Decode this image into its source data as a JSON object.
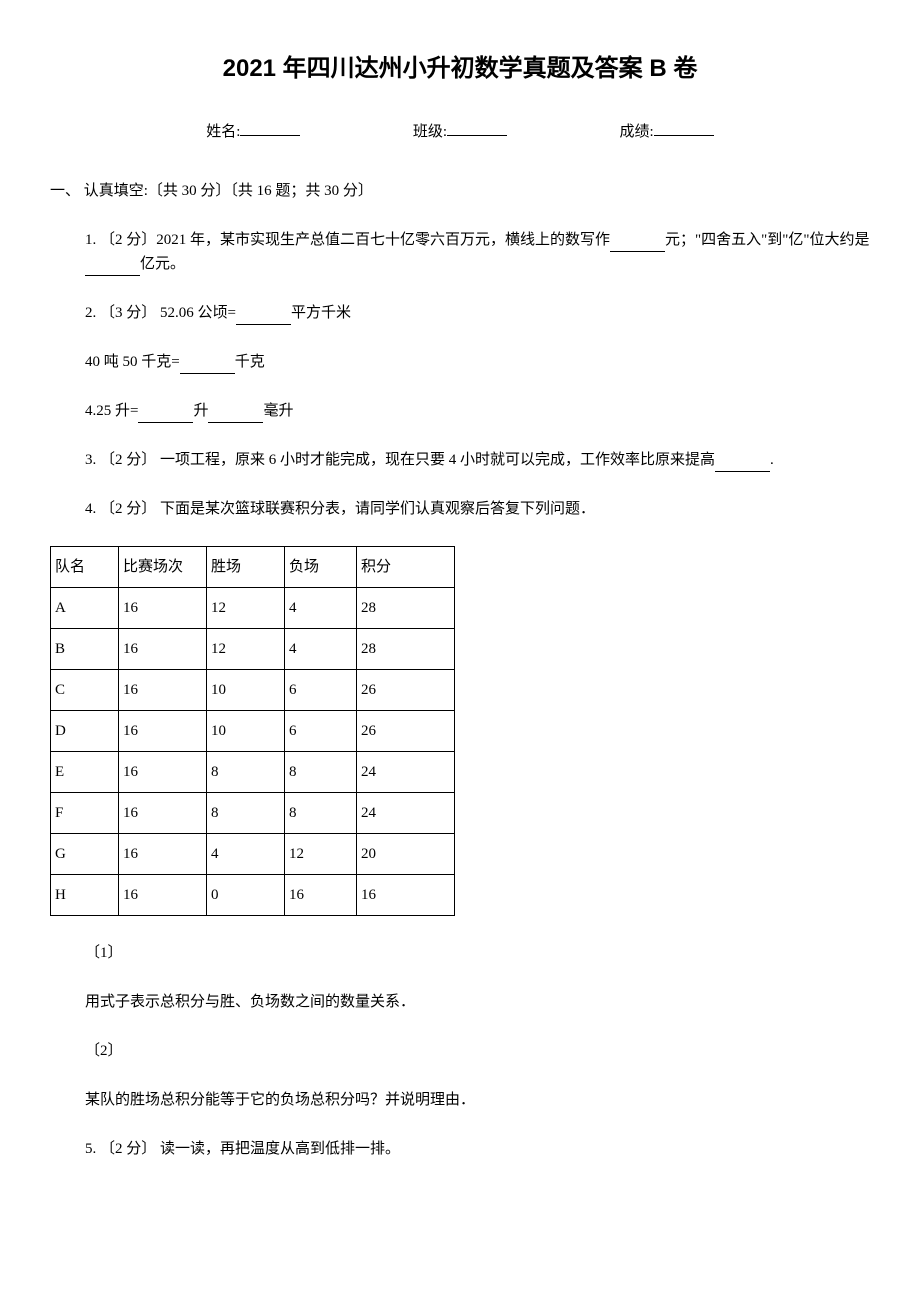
{
  "title": "2021 年四川达州小升初数学真题及答案 B 卷",
  "info": {
    "name_label": "姓名:",
    "class_label": "班级:",
    "score_label": "成绩:"
  },
  "section1": {
    "header": "一、 认真填空:〔共 30 分〕〔共 16 题；共 30 分〕"
  },
  "q1": {
    "text_a": "1. 〔2 分〕2021 年，某市实现生产总值二百七十亿零六百万元，横线上的数写作",
    "text_b": "元；\"四舍五入\"到\"亿\"位大约是",
    "text_c": "亿元。"
  },
  "q2": {
    "line1_a": "2. 〔3 分〕  52.06 公顷=",
    "line1_b": "平方千米",
    "line2_a": "40 吨 50 千克=",
    "line2_b": "千克",
    "line3_a": "4.25 升=",
    "line3_b": "升",
    "line3_c": "毫升"
  },
  "q3": {
    "text_a": "3. 〔2 分〕 一项工程，原来 6 小时才能完成，现在只要 4 小时就可以完成，工作效率比原来提高",
    "text_b": "."
  },
  "q4": {
    "intro": "4. 〔2 分〕 下面是某次篮球联赛积分表，请同学们认真观察后答复下列问题．",
    "table": {
      "columns": [
        "队名",
        "比赛场次",
        "胜场",
        "负场",
        "积分"
      ],
      "rows": [
        [
          "A",
          "16",
          "12",
          "4",
          "28"
        ],
        [
          "B",
          "16",
          "12",
          "4",
          "28"
        ],
        [
          "C",
          "16",
          "10",
          "6",
          "26"
        ],
        [
          "D",
          "16",
          "10",
          "6",
          "26"
        ],
        [
          "E",
          "16",
          "8",
          "8",
          "24"
        ],
        [
          "F",
          "16",
          "8",
          "8",
          "24"
        ],
        [
          "G",
          "16",
          "4",
          "12",
          "20"
        ],
        [
          "H",
          "16",
          "0",
          "16",
          "16"
        ]
      ]
    },
    "sub1_num": "〔1〕",
    "sub1_text": "用式子表示总积分与胜、负场数之间的数量关系．",
    "sub2_num": "〔2〕",
    "sub2_text": "某队的胜场总积分能等于它的负场总积分吗？并说明理由．"
  },
  "q5": {
    "text": "5. 〔2 分〕 读一读，再把温度从高到低排一排。"
  }
}
